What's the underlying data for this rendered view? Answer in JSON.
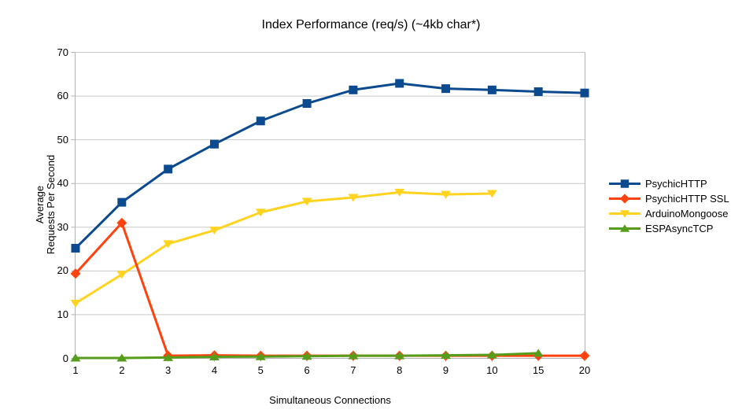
{
  "chart_data": {
    "type": "line",
    "title": "Index Performance (req/s) (~4kb char*)",
    "xlabel": "Simultaneous Connections",
    "ylabel_lines": [
      "Average",
      "Requests Per Second"
    ],
    "categories": [
      "1",
      "2",
      "3",
      "4",
      "5",
      "6",
      "7",
      "8",
      "9",
      "10",
      "15",
      "20"
    ],
    "ylim": [
      0,
      70
    ],
    "yticks": [
      0,
      10,
      20,
      30,
      40,
      50,
      60,
      70
    ],
    "grid": true,
    "legend_position": "right",
    "series": [
      {
        "name": "PsychicHTTP",
        "color": "#0B4A8F",
        "marker": "square",
        "values": [
          25.2,
          35.7,
          43.3,
          49.0,
          54.3,
          58.3,
          61.4,
          62.9,
          61.7,
          61.4,
          61.0,
          60.7
        ]
      },
      {
        "name": "PsychicHTTP SSL",
        "color": "#FF420E",
        "marker": "diamond",
        "values": [
          19.4,
          31.0,
          0.6,
          0.7,
          0.6,
          0.6,
          0.6,
          0.6,
          0.6,
          0.6,
          0.6,
          0.6
        ]
      },
      {
        "name": "ArduinoMongoose",
        "color": "#FFD320",
        "marker": "triangle-down",
        "values": [
          12.6,
          19.2,
          26.2,
          29.3,
          33.4,
          35.9,
          36.8,
          38.0,
          37.5,
          37.7,
          null,
          null
        ]
      },
      {
        "name": "ESPAsyncTCP",
        "color": "#579D1C",
        "marker": "triangle-up",
        "values": [
          0.1,
          0.1,
          0.2,
          0.35,
          0.4,
          0.5,
          0.6,
          0.6,
          0.7,
          0.8,
          1.2,
          null
        ]
      }
    ],
    "colors": {
      "background": "#ffffff",
      "gridline": "#c9c9c9",
      "axis": "#b3b3b3",
      "text": "#000000"
    }
  }
}
